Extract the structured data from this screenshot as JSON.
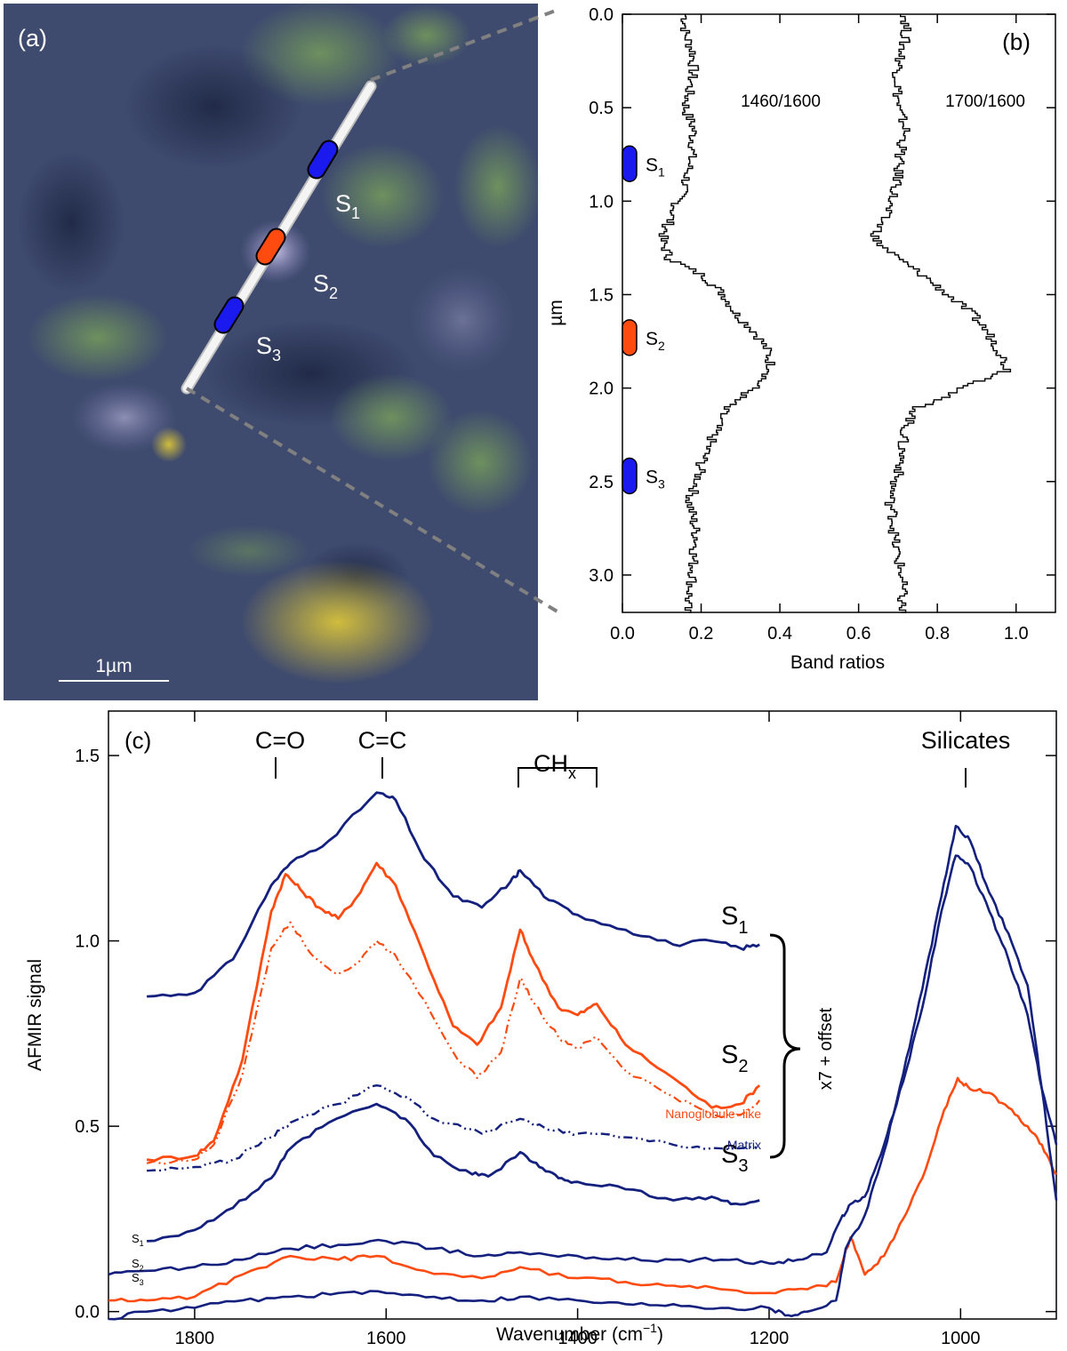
{
  "colors": {
    "navy": "#14207e",
    "orange": "#ff4a10",
    "black": "#000000",
    "marker_blue": "#1a1aee",
    "marker_orange": "#ff4a10",
    "dash_gray": "#808080"
  },
  "panel_a": {
    "label": "(a)",
    "scalebar_label": "1µm",
    "scalebar_value_um": 1,
    "markers": [
      {
        "label": "S",
        "sub": "1",
        "color": "marker_blue"
      },
      {
        "label": "S",
        "sub": "2",
        "color": "marker_orange"
      },
      {
        "label": "S",
        "sub": "3",
        "color": "marker_blue"
      }
    ]
  },
  "panel_b": {
    "label": "(b)",
    "xlabel": "Band ratios",
    "ylabel": "µm",
    "xticks": [
      "0.0",
      "0.2",
      "0.4",
      "0.6",
      "0.8",
      "1.0"
    ],
    "yticks": [
      "0.0",
      "0.5",
      "1.0",
      "1.5",
      "2.0",
      "2.5",
      "3.0"
    ],
    "series_labels": [
      "1460/1600",
      "1700/1600"
    ],
    "markers": [
      {
        "label": "S",
        "sub": "1",
        "y_um": 0.8,
        "color": "marker_blue"
      },
      {
        "label": "S",
        "sub": "2",
        "y_um": 1.73,
        "color": "marker_orange"
      },
      {
        "label": "S",
        "sub": "3",
        "y_um": 2.47,
        "color": "marker_blue"
      }
    ]
  },
  "panel_c": {
    "label": "(c)",
    "xlabel_main": "Wavenumber (cm",
    "xlabel_sup": "−1",
    "xlabel_end": ")",
    "ylabel": "AFMIR signal",
    "xticks": [
      "1800",
      "1600",
      "1400",
      "1200",
      "1000"
    ],
    "yticks": [
      "0.0",
      "0.5",
      "1.0",
      "1.5"
    ],
    "band_labels": {
      "co": "C=O",
      "cc": "C=C",
      "chx": "CH",
      "chx_sub": "x",
      "sil": "Silicates"
    },
    "curve_labels": [
      {
        "label": "S",
        "sub": "1"
      },
      {
        "label": "S",
        "sub": "2"
      },
      {
        "label": "S",
        "sub": "3"
      }
    ],
    "small_labels": [
      {
        "label": "S",
        "sub": "1"
      },
      {
        "label": "S",
        "sub": "2"
      },
      {
        "label": "S",
        "sub": "3"
      }
    ],
    "nanoglobule_label": "Nanoglobule−like",
    "matrix_label": "Matrix",
    "offset_label": "x7 + offset"
  },
  "chart_data": [
    {
      "type": "line",
      "panel": "b",
      "xlabel": "Band ratios",
      "ylabel": "µm",
      "xlim": [
        0.0,
        1.1
      ],
      "ylim": [
        3.2,
        0.0
      ],
      "y_inverted": true,
      "series": [
        {
          "name": "1460/1600",
          "depth_um": [
            0.0,
            0.1,
            0.2,
            0.3,
            0.4,
            0.5,
            0.6,
            0.7,
            0.8,
            0.9,
            1.0,
            1.1,
            1.2,
            1.3,
            1.4,
            1.5,
            1.6,
            1.7,
            1.8,
            1.9,
            2.0,
            2.1,
            2.2,
            2.3,
            2.4,
            2.5,
            2.6,
            2.7,
            2.8,
            2.9,
            3.0,
            3.1,
            3.2
          ],
          "values": [
            0.16,
            0.16,
            0.18,
            0.18,
            0.17,
            0.16,
            0.18,
            0.18,
            0.17,
            0.16,
            0.14,
            0.12,
            0.1,
            0.12,
            0.21,
            0.26,
            0.29,
            0.34,
            0.37,
            0.38,
            0.33,
            0.26,
            0.24,
            0.22,
            0.2,
            0.19,
            0.17,
            0.18,
            0.19,
            0.18,
            0.18,
            0.17,
            0.16
          ]
        },
        {
          "name": "1700/1600",
          "depth_um": [
            0.0,
            0.1,
            0.2,
            0.3,
            0.4,
            0.5,
            0.6,
            0.7,
            0.8,
            0.9,
            1.0,
            1.1,
            1.2,
            1.3,
            1.4,
            1.5,
            1.6,
            1.7,
            1.8,
            1.9,
            2.0,
            2.1,
            2.2,
            2.3,
            2.4,
            2.5,
            2.6,
            2.7,
            2.8,
            2.9,
            3.0,
            3.1,
            3.2
          ],
          "values": [
            0.72,
            0.72,
            0.71,
            0.7,
            0.7,
            0.7,
            0.72,
            0.71,
            0.7,
            0.7,
            0.68,
            0.66,
            0.64,
            0.7,
            0.77,
            0.83,
            0.89,
            0.93,
            0.96,
            0.98,
            0.86,
            0.75,
            0.72,
            0.71,
            0.71,
            0.69,
            0.68,
            0.69,
            0.69,
            0.7,
            0.71,
            0.71,
            0.71
          ]
        }
      ]
    },
    {
      "type": "line",
      "panel": "c",
      "xlabel": "Wavenumber (cm−1)",
      "ylabel": "AFMIR signal",
      "xlim": [
        1890,
        900
      ],
      "ylim": [
        -0.02,
        1.62
      ],
      "x_inverted": true,
      "series": [
        {
          "name": "S1",
          "x": [
            1850,
            1800,
            1760,
            1720,
            1700,
            1660,
            1610,
            1590,
            1560,
            1530,
            1500,
            1470,
            1460,
            1430,
            1400,
            1350,
            1300,
            1260,
            1230,
            1210
          ],
          "y": [
            0.85,
            0.86,
            0.95,
            1.15,
            1.21,
            1.27,
            1.4,
            1.38,
            1.22,
            1.12,
            1.09,
            1.16,
            1.19,
            1.11,
            1.07,
            1.03,
            0.99,
            1.0,
            0.98,
            0.99
          ]
        },
        {
          "name": "S2",
          "x": [
            1850,
            1800,
            1780,
            1750,
            1720,
            1705,
            1690,
            1670,
            1650,
            1630,
            1610,
            1590,
            1560,
            1530,
            1505,
            1480,
            1460,
            1445,
            1420,
            1400,
            1380,
            1350,
            1300,
            1260,
            1230,
            1210
          ],
          "y": [
            0.41,
            0.42,
            0.46,
            0.68,
            1.08,
            1.18,
            1.14,
            1.09,
            1.06,
            1.12,
            1.21,
            1.15,
            0.96,
            0.77,
            0.72,
            0.82,
            1.03,
            0.94,
            0.82,
            0.8,
            0.83,
            0.72,
            0.63,
            0.55,
            0.56,
            0.61
          ]
        },
        {
          "name": "Nanoglobule-like",
          "x": [
            1850,
            1800,
            1780,
            1750,
            1720,
            1700,
            1680,
            1650,
            1630,
            1610,
            1590,
            1560,
            1530,
            1505,
            1480,
            1460,
            1445,
            1420,
            1400,
            1380,
            1350,
            1300,
            1260,
            1230,
            1210
          ],
          "y": [
            0.4,
            0.41,
            0.45,
            0.64,
            0.98,
            1.05,
            0.97,
            0.91,
            0.94,
            1.0,
            0.96,
            0.84,
            0.7,
            0.63,
            0.7,
            0.9,
            0.83,
            0.74,
            0.71,
            0.74,
            0.65,
            0.58,
            0.53,
            0.53,
            0.57
          ]
        },
        {
          "name": "Matrix",
          "x": [
            1850,
            1800,
            1760,
            1720,
            1700,
            1650,
            1610,
            1580,
            1550,
            1500,
            1460,
            1430,
            1400,
            1350,
            1300,
            1250,
            1210
          ],
          "y": [
            0.38,
            0.39,
            0.41,
            0.47,
            0.51,
            0.56,
            0.61,
            0.58,
            0.52,
            0.48,
            0.52,
            0.49,
            0.48,
            0.47,
            0.45,
            0.44,
            0.44
          ]
        },
        {
          "name": "S3",
          "x": [
            1850,
            1800,
            1760,
            1720,
            1700,
            1660,
            1610,
            1580,
            1550,
            1510,
            1490,
            1460,
            1440,
            1420,
            1400,
            1350,
            1300,
            1260,
            1240,
            1210
          ],
          "y": [
            0.19,
            0.22,
            0.28,
            0.36,
            0.44,
            0.51,
            0.56,
            0.52,
            0.42,
            0.37,
            0.37,
            0.43,
            0.39,
            0.36,
            0.35,
            0.33,
            0.3,
            0.31,
            0.29,
            0.3
          ]
        },
        {
          "name": "S1 (raw)",
          "x": [
            1890,
            1850,
            1800,
            1750,
            1700,
            1650,
            1600,
            1550,
            1500,
            1460,
            1400,
            1350,
            1300,
            1250,
            1200,
            1170,
            1140,
            1125,
            1115,
            1100,
            1080,
            1060,
            1040,
            1020,
            1005,
            990,
            970,
            950,
            930,
            915,
            900
          ],
          "y": [
            0.1,
            0.11,
            0.12,
            0.14,
            0.17,
            0.18,
            0.19,
            0.17,
            0.15,
            0.16,
            0.15,
            0.14,
            0.14,
            0.14,
            0.13,
            0.14,
            0.16,
            0.25,
            0.29,
            0.31,
            0.45,
            0.62,
            0.82,
            1.08,
            1.23,
            1.2,
            1.08,
            0.95,
            0.8,
            0.6,
            0.45
          ]
        },
        {
          "name": "S2 (raw)",
          "x": [
            1890,
            1850,
            1800,
            1750,
            1700,
            1650,
            1610,
            1560,
            1500,
            1460,
            1400,
            1350,
            1300,
            1250,
            1200,
            1160,
            1130,
            1115,
            1100,
            1080,
            1060,
            1040,
            1020,
            1003,
            990,
            970,
            950,
            930,
            915,
            900
          ],
          "y": [
            0.03,
            0.03,
            0.04,
            0.1,
            0.15,
            0.14,
            0.15,
            0.11,
            0.09,
            0.12,
            0.09,
            0.08,
            0.07,
            0.06,
            0.05,
            0.06,
            0.08,
            0.2,
            0.1,
            0.15,
            0.25,
            0.36,
            0.52,
            0.63,
            0.6,
            0.59,
            0.55,
            0.5,
            0.45,
            0.37
          ]
        },
        {
          "name": "S3 (raw)",
          "x": [
            1890,
            1850,
            1800,
            1750,
            1700,
            1650,
            1600,
            1550,
            1500,
            1460,
            1400,
            1350,
            1300,
            1250,
            1200,
            1180,
            1160,
            1130,
            1120,
            1100,
            1080,
            1060,
            1040,
            1020,
            1005,
            990,
            970,
            950,
            930,
            915,
            900
          ],
          "y": [
            -0.02,
            0.0,
            0.01,
            0.03,
            0.04,
            0.05,
            0.05,
            0.04,
            0.03,
            0.04,
            0.03,
            0.02,
            0.02,
            0.01,
            0.01,
            -0.01,
            0.0,
            0.03,
            0.17,
            0.26,
            0.43,
            0.64,
            0.87,
            1.12,
            1.31,
            1.27,
            1.13,
            1.02,
            0.88,
            0.6,
            0.3
          ]
        }
      ]
    }
  ]
}
